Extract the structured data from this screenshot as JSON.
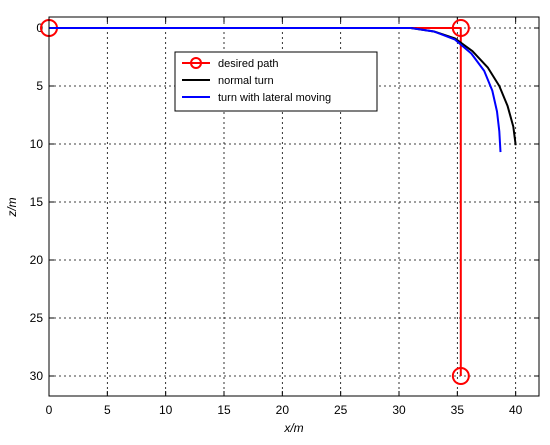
{
  "chart_data": {
    "type": "line",
    "xlabel": "x/m",
    "ylabel": "z/m",
    "xlim": [
      0,
      42
    ],
    "ylim": [
      0,
      32
    ],
    "y_inverted": true,
    "xticks": [
      0,
      5,
      10,
      15,
      20,
      25,
      30,
      35,
      40
    ],
    "yticks": [
      0,
      5,
      10,
      15,
      20,
      25,
      30
    ],
    "grid": true,
    "grid_style": "dotted",
    "legend_position": "top-center",
    "series": [
      {
        "name": "desired path",
        "color": "#ff0000",
        "marker": "circle",
        "marker_at": [
          0,
          1,
          2
        ],
        "x": [
          0,
          35.3,
          35.3
        ],
        "y": [
          0,
          0,
          30
        ]
      },
      {
        "name": "normal turn",
        "color": "#000000",
        "x": [
          0,
          31,
          33,
          34.8,
          36.3,
          37.6,
          38.6,
          39.3,
          39.8,
          40
        ],
        "y": [
          0,
          0,
          0.3,
          0.9,
          2.0,
          3.4,
          5.0,
          6.7,
          8.5,
          10.1
        ]
      },
      {
        "name": "turn with lateral moving",
        "color": "#0000ff",
        "x": [
          0,
          31,
          33,
          34.8,
          36.2,
          37.3,
          38,
          38.4,
          38.6,
          38.7
        ],
        "y": [
          0,
          0,
          0.3,
          1.0,
          2.2,
          3.7,
          5.4,
          7.2,
          8.9,
          10.7
        ]
      }
    ]
  }
}
